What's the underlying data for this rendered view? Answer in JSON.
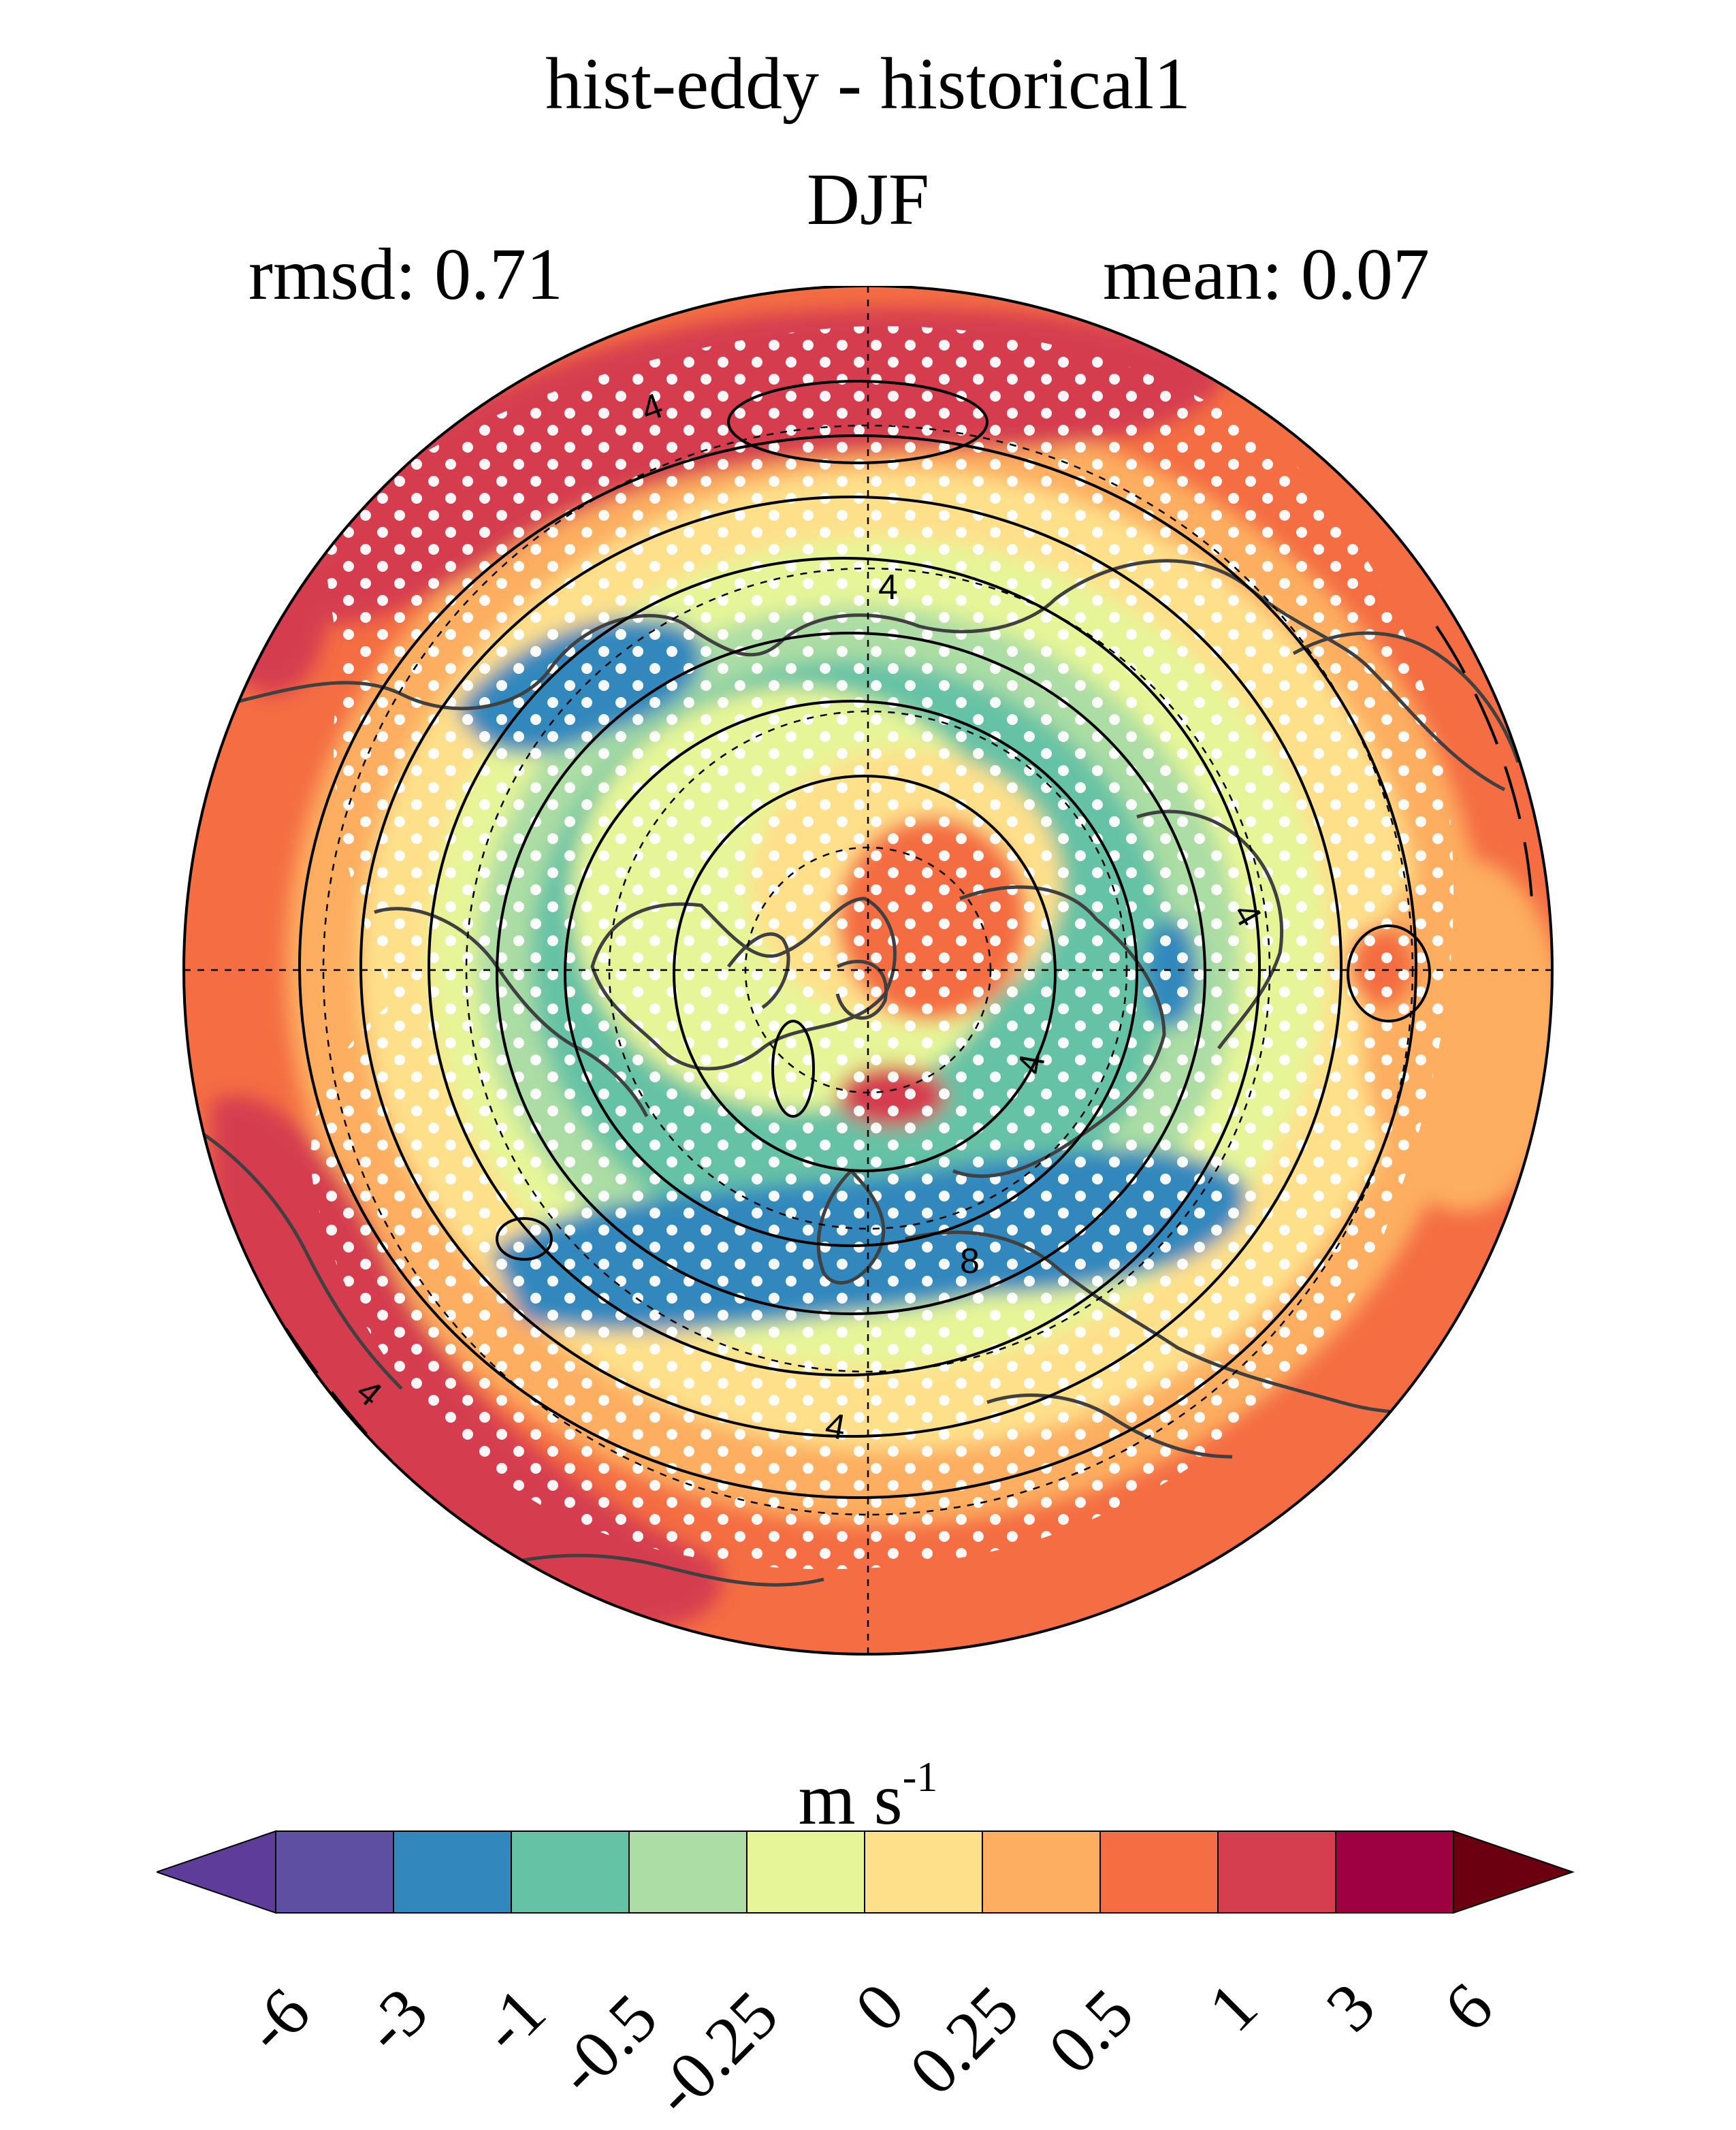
{
  "title": "hist-eddy - historical1",
  "season": "DJF",
  "stats": {
    "rmsd": "rmsd: 0.71",
    "mean": "mean: 0.07"
  },
  "units": {
    "base": "m s",
    "exp": "-1"
  },
  "contour_labels": [
    "4",
    "4",
    "4",
    "4",
    "4",
    "4",
    "4",
    "8"
  ],
  "colorbar": {
    "colors": [
      "#5e4fa2",
      "#3288bd",
      "#66c2a5",
      "#abdda4",
      "#e6f598",
      "#fee08b",
      "#fdae61",
      "#f46d43",
      "#d53e4f",
      "#9e0142"
    ],
    "under_color": "#5e3c99",
    "over_color": "#6b0010",
    "levels": [
      "-6",
      "-3",
      "-1",
      "-0.5",
      "-0.25",
      "0",
      "0.25",
      "0.5",
      "1",
      "3",
      "6"
    ]
  },
  "map_colors": {
    "strong_pos": "#d53e4f",
    "pos": "#f46d43",
    "weak_pos": "#fdae61",
    "slight_pos": "#fee08b",
    "slight_neg": "#e6f598",
    "weak_neg": "#abdda4",
    "neg": "#66c2a5",
    "strong_neg": "#3288bd",
    "coast": "#404040",
    "stipple": "#ffffff"
  }
}
